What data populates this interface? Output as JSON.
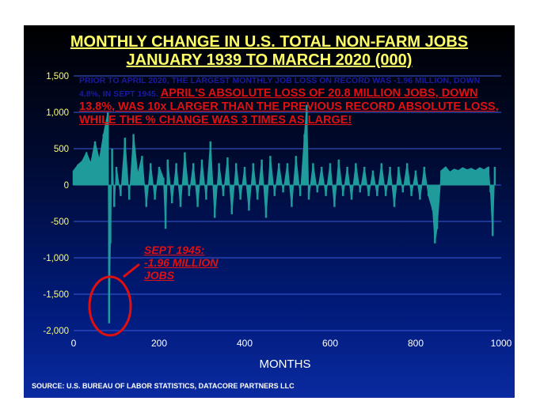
{
  "chart_data": {
    "type": "bar",
    "title": "MONTHLY CHANGE IN U.S. TOTAL NON-FARM JOBS",
    "subtitle": "JANUARY 1939 TO MARCH 2020 (000)",
    "xlabel": "MONTHS",
    "ylabel": "",
    "xlim": [
      0,
      1000
    ],
    "ylim": [
      -2000,
      1500
    ],
    "x_ticks": [
      "0",
      "200",
      "400",
      "600",
      "800",
      "1000"
    ],
    "y_ticks": [
      "1,500",
      "1,000",
      "500",
      "0",
      "-500",
      "-1,000",
      "-1,500",
      "-2,000"
    ],
    "y_tick_values": [
      1500,
      1000,
      500,
      0,
      -500,
      -1000,
      -1500,
      -2000
    ],
    "grid": "horizontal",
    "bar_color": "#1f9b9b",
    "series": [
      {
        "x": [
          0,
          10,
          20,
          30,
          40,
          50,
          60,
          70,
          80,
          83,
          86,
          90,
          95,
          100,
          110,
          120,
          130,
          140,
          150,
          160,
          170,
          180,
          190,
          200,
          210,
          215,
          220,
          230,
          240,
          250,
          260,
          270,
          280,
          290,
          300,
          310,
          320,
          330,
          340,
          350,
          360,
          370,
          380,
          390,
          400,
          410,
          420,
          430,
          440,
          450,
          460,
          470,
          480,
          490,
          500,
          510,
          520,
          530,
          540,
          545,
          550,
          560,
          570,
          580,
          590,
          600,
          610,
          620,
          630,
          640,
          650,
          660,
          670,
          680,
          690,
          700,
          710,
          720,
          730,
          740,
          750,
          760,
          770,
          780,
          790,
          800,
          810,
          820,
          830,
          840,
          845,
          850,
          860,
          870,
          880,
          890,
          900,
          910,
          920,
          930,
          940,
          950,
          960,
          970,
          975,
          980,
          985
        ],
        "values": [
          200,
          280,
          330,
          450,
          300,
          600,
          350,
          700,
          1000,
          -1900,
          -800,
          500,
          -300,
          250,
          -150,
          650,
          -200,
          700,
          150,
          400,
          -300,
          300,
          -200,
          250,
          100,
          -600,
          350,
          -250,
          300,
          -300,
          450,
          -150,
          300,
          -300,
          350,
          -200,
          600,
          -450,
          300,
          -150,
          380,
          -400,
          300,
          -200,
          250,
          -350,
          300,
          -200,
          350,
          -450,
          400,
          -150,
          300,
          -100,
          300,
          -300,
          400,
          -150,
          700,
          1100,
          -200,
          300,
          -100,
          250,
          -150,
          300,
          -300,
          350,
          -150,
          250,
          -200,
          300,
          -100,
          250,
          -150,
          200,
          -150,
          300,
          -150,
          250,
          -300,
          250,
          -100,
          300,
          -150,
          200,
          -200,
          250,
          -150,
          -350,
          -800,
          -600,
          200,
          250,
          180,
          220,
          200,
          240,
          210,
          230,
          200,
          240,
          210,
          250,
          -100,
          -700,
          250
        ]
      }
    ]
  },
  "annotations": {
    "note_intro": "PRIOR TO APRIL 2020, THE LARGEST MONTHLY JOB LOSS ON RECORD WAS -1.96 MILLION, DOWN 4.8%, IN SEPT 1945.",
    "note_highlight": "APRIL'S ABSOLUTE LOSS OF 20.8 MILLION JOBS, DOWN 13.8%, WAS 10x LARGER THAN THE PREVIOUS RECORD ABSOLUTE LOSS, WHILE THE % CHANGE WAS 3 TIMES AS LARGE!",
    "sept_line1": "SEPT 1945:",
    "sept_line2": "-1.96 MILLION",
    "sept_line3": "JOBS"
  },
  "source": "SOURCE: U.S. BUREAU OF LABOR STATISTICS, DATACORE PARTNERS LLC",
  "colors": {
    "title": "#ffff66",
    "tick_label": "#ffff66",
    "grid": "#3a5ad8",
    "highlight": "#e01010",
    "note": "#1a1aa0"
  }
}
